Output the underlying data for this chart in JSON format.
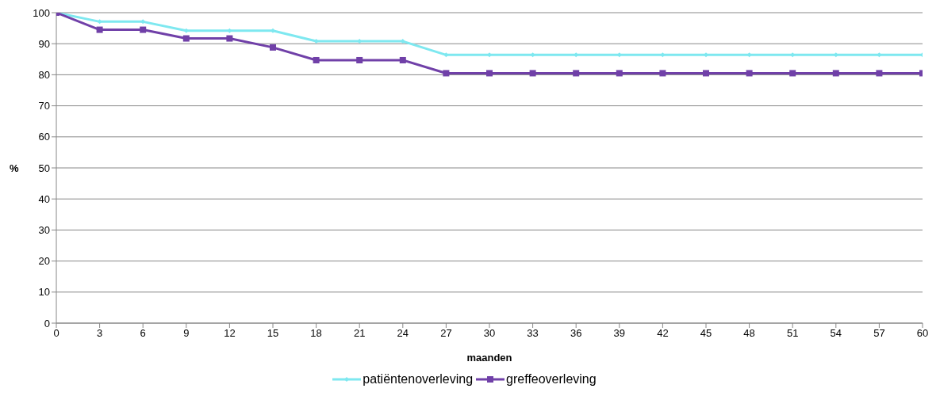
{
  "chart_data": {
    "type": "line",
    "xlabel": "maanden",
    "ylabel": "%",
    "x": [
      0,
      3,
      6,
      9,
      12,
      15,
      18,
      21,
      24,
      27,
      30,
      33,
      36,
      39,
      42,
      45,
      48,
      51,
      54,
      57,
      60
    ],
    "series": [
      {
        "name": "patiëntenoverleving",
        "color": "#7ee8f0",
        "marker": "diamond",
        "values": [
          100,
          97.1,
          97.1,
          94.2,
          94.2,
          94.2,
          90.8,
          90.8,
          90.8,
          86.4,
          86.4,
          86.4,
          86.4,
          86.4,
          86.4,
          86.4,
          86.4,
          86.4,
          86.4,
          86.4,
          86.4
        ]
      },
      {
        "name": "greffeoverleving",
        "color": "#7040a8",
        "marker": "square",
        "values": [
          100,
          94.5,
          94.5,
          91.7,
          91.7,
          88.8,
          84.7,
          84.7,
          84.7,
          80.5,
          80.5,
          80.5,
          80.5,
          80.5,
          80.5,
          80.5,
          80.5,
          80.5,
          80.5,
          80.5,
          80.5
        ]
      }
    ],
    "xlim": [
      0,
      60
    ],
    "xticks": [
      0,
      3,
      6,
      9,
      12,
      15,
      18,
      21,
      24,
      27,
      30,
      33,
      36,
      39,
      42,
      45,
      48,
      51,
      54,
      57,
      60
    ],
    "ylim": [
      0,
      100
    ],
    "yticks": [
      0,
      10,
      20,
      30,
      40,
      50,
      60,
      70,
      80,
      90,
      100
    ],
    "grid": "y",
    "legend": "bottom",
    "line_style": "solid"
  }
}
